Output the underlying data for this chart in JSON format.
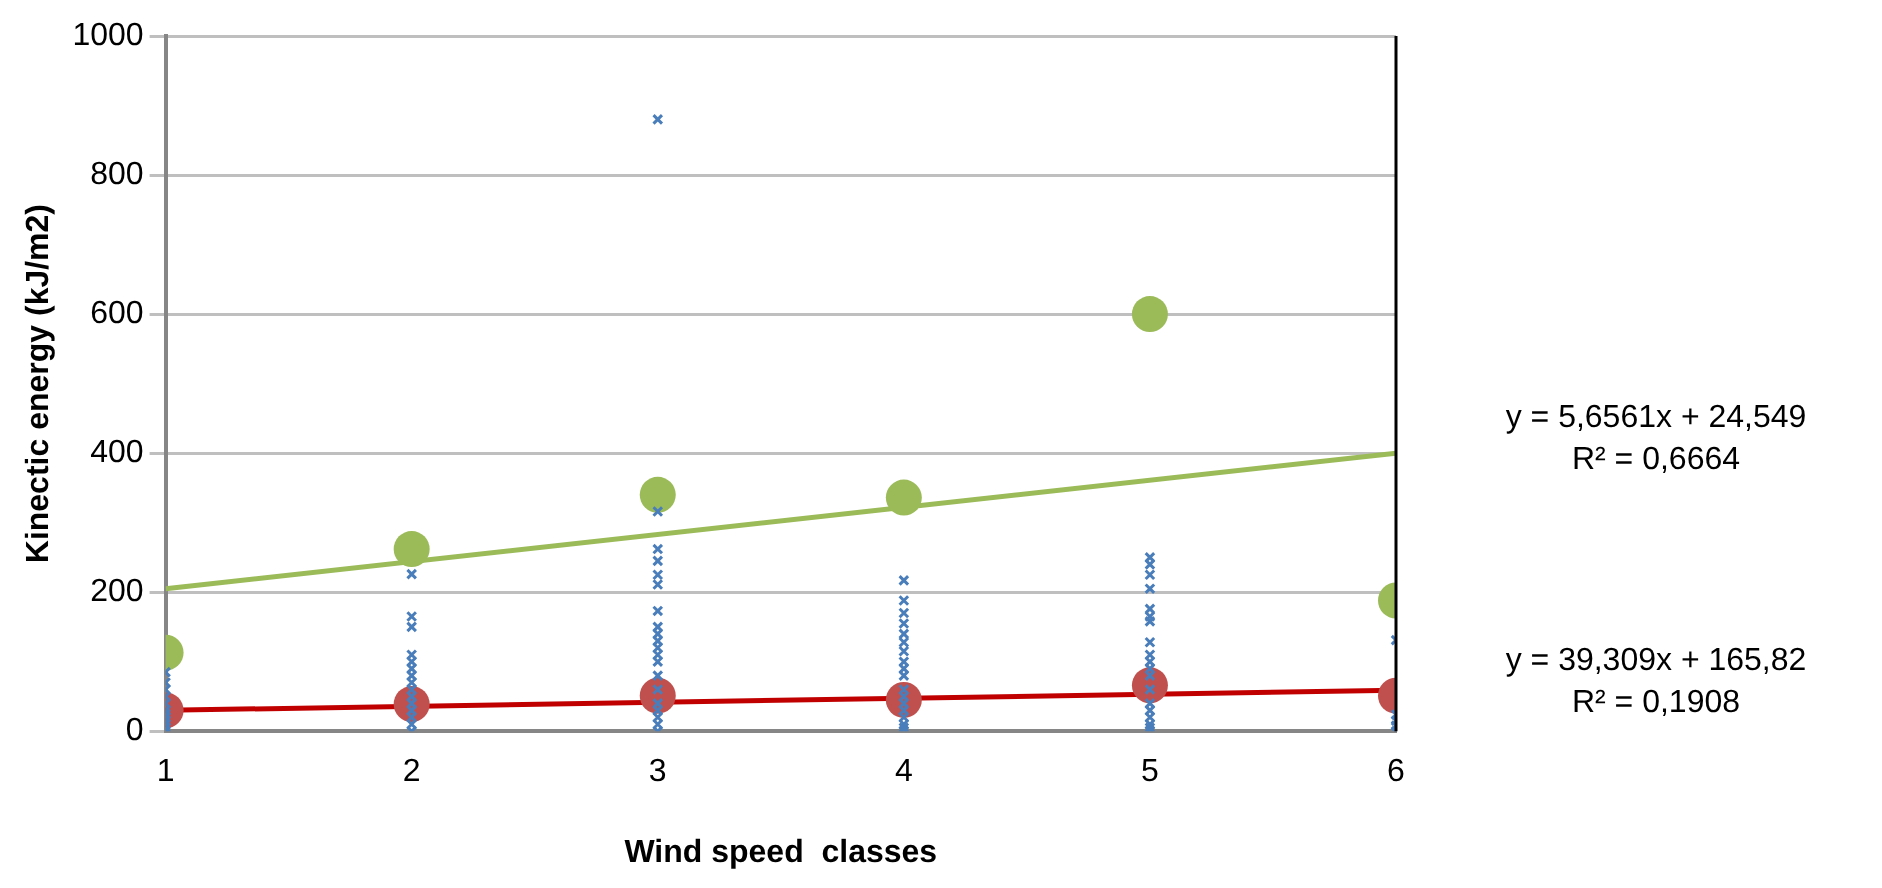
{
  "chart_data": {
    "type": "scatter",
    "xlabel": "Wind speed  classes",
    "ylabel": "Kinectic energy (kJ/m2)",
    "xlim": [
      1,
      6
    ],
    "ylim": [
      0,
      1000
    ],
    "xticks": [
      1,
      2,
      3,
      4,
      5,
      6
    ],
    "yticks": [
      0,
      200,
      400,
      600,
      800,
      1000
    ],
    "grid": "y",
    "legend": false,
    "series": [
      {
        "marker": "cross",
        "color": "#4a7ebb",
        "x": [
          1,
          1,
          1,
          1,
          1,
          1,
          1,
          1,
          1,
          1,
          1,
          1,
          2,
          2,
          2,
          2,
          2,
          2,
          2,
          2,
          2,
          2,
          2,
          2,
          2,
          2,
          2,
          3,
          3,
          3,
          3,
          3,
          3,
          3,
          3,
          3,
          3,
          3,
          3,
          3,
          3,
          3,
          3,
          3,
          3,
          3,
          3,
          4,
          4,
          4,
          4,
          4,
          4,
          4,
          4,
          4,
          4,
          4,
          4,
          4,
          4,
          4,
          4,
          4,
          4,
          5,
          5,
          5,
          5,
          5,
          5,
          5,
          5,
          5,
          5,
          5,
          5,
          5,
          5,
          5,
          5,
          5,
          5,
          5,
          6,
          6,
          6,
          6,
          6
        ],
        "values": [
          0,
          5,
          10,
          15,
          20,
          25,
          30,
          40,
          50,
          60,
          70,
          85,
          226,
          165,
          150,
          110,
          100,
          90,
          80,
          70,
          60,
          50,
          40,
          30,
          20,
          10,
          0,
          880,
          316,
          262,
          245,
          225,
          211,
          173,
          150,
          140,
          130,
          120,
          110,
          100,
          80,
          60,
          40,
          30,
          20,
          10,
          0,
          217,
          188,
          170,
          155,
          140,
          128,
          115,
          100,
          90,
          80,
          60,
          50,
          40,
          30,
          20,
          10,
          5,
          0,
          250,
          240,
          225,
          205,
          176,
          165,
          158,
          128,
          110,
          100,
          90,
          80,
          60,
          40,
          30,
          20,
          10,
          5,
          0,
          131,
          24,
          15,
          8,
          0
        ]
      },
      {
        "marker": "circle",
        "color": "#9bbb59",
        "x": [
          1,
          2,
          3,
          4,
          5,
          6
        ],
        "values": [
          113,
          262,
          340,
          336,
          600,
          188
        ]
      },
      {
        "marker": "circle",
        "color": "#c0504d",
        "x": [
          1,
          2,
          3,
          4,
          5,
          6
        ],
        "values": [
          30,
          39,
          51,
          45,
          66,
          51
        ]
      },
      {
        "type": "line",
        "marker": "none",
        "color": "#9bbb59",
        "x": [
          1,
          6
        ],
        "values": [
          205,
          400
        ]
      },
      {
        "type": "line",
        "marker": "none",
        "color": "#c00000",
        "x": [
          1,
          6
        ],
        "values": [
          30,
          59
        ]
      }
    ],
    "annotations": [
      "y = 5,6561x + 24,549\nR² = 0,6664",
      "y = 39,309x + 165,82\nR² = 0,1908"
    ]
  }
}
